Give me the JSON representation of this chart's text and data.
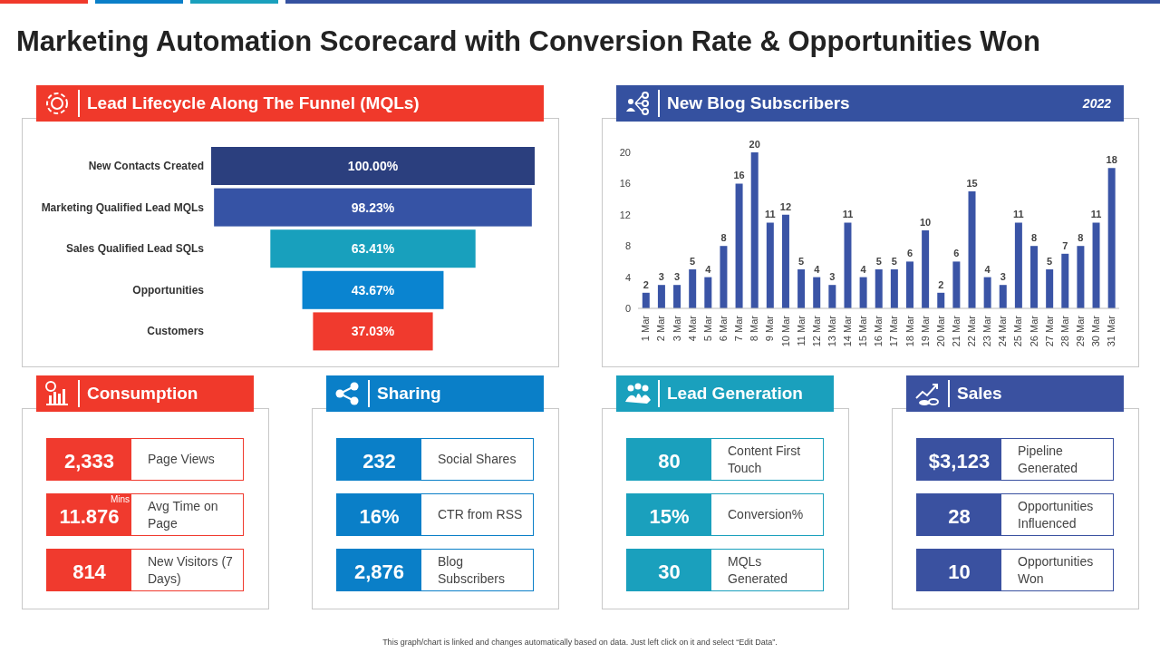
{
  "chart_data": [
    {
      "type": "other",
      "title": "Marketing Automation Scorecard with Conversion Rate & Opportunities Won",
      "annotations": [
        "This graph/chart is linked and changes automatically based on data. Just left click on it and select “Edit Data”."
      ]
    },
    {
      "type": "other",
      "title": "Lead Lifecycle Along The Funnel (MQLs)",
      "categories": [
        "New Contacts Created",
        "Marketing Qualified Lead MQLs",
        "Sales Qualified Lead SQLs",
        "Opportunities",
        "Customers"
      ],
      "values": [
        100.0,
        98.23,
        63.41,
        43.67,
        37.03
      ],
      "value_labels": [
        "100.00%",
        "98.23%",
        "63.41%",
        "43.67%",
        "37.03%"
      ],
      "colors": [
        "#2b3f7e",
        "#3653a5",
        "#18a0bd",
        "#0a84d0",
        "#f03a2e"
      ]
    },
    {
      "type": "bar",
      "title": "New Blog Subscribers",
      "subtitle": "2022",
      "categories": [
        "1 Mar",
        "2 Mar",
        "3 Mar",
        "4 Mar",
        "5 Mar",
        "6 Mar",
        "7 Mar",
        "8 Mar",
        "9 Mar",
        "10 Mar",
        "11 Mar",
        "12 Mar",
        "13 Mar",
        "14 Mar",
        "15 Mar",
        "16 Mar",
        "17 Mar",
        "18 Mar",
        "19 Mar",
        "20 Mar",
        "21 Mar",
        "22 Mar",
        "23 Mar",
        "24 Mar",
        "25 Mar",
        "26 Mar",
        "27 Mar",
        "28 Mar",
        "29 Mar",
        "30 Mar",
        "31 Mar"
      ],
      "values": [
        2,
        3,
        3,
        5,
        4,
        8,
        16,
        20,
        11,
        12,
        5,
        4,
        3,
        11,
        4,
        5,
        5,
        6,
        10,
        2,
        6,
        15,
        4,
        3,
        11,
        8,
        5,
        7,
        8,
        11,
        18
      ],
      "color": "#3a54a6",
      "ylim": [
        0,
        20
      ],
      "yticks": [
        0,
        4,
        8,
        12,
        16,
        20
      ],
      "data_labels": true
    },
    {
      "type": "other",
      "title": "Consumption",
      "categories": [
        "Page Views",
        "Avg Time on Page",
        "New Visitors (7 Days)"
      ],
      "value_labels": [
        "2,333",
        "11.876",
        "814"
      ],
      "color": "#f03a2e",
      "annotations": [
        "Mins"
      ]
    },
    {
      "type": "other",
      "title": "Sharing",
      "categories": [
        "Social Shares",
        "CTR from RSS",
        "Blog Subscribers"
      ],
      "value_labels": [
        "232",
        "16%",
        "2,876"
      ],
      "color": "#0a7fc8"
    },
    {
      "type": "other",
      "title": "Lead Generation",
      "categories": [
        "Content First Touch",
        "Conversion%",
        "MQLs Generated"
      ],
      "value_labels": [
        "80",
        "15%",
        "30"
      ],
      "color": "#1aa0bd"
    },
    {
      "type": "other",
      "title": "Sales",
      "categories": [
        "Pipeline Generated",
        "Opportunities Influenced",
        "Opportunities Won"
      ],
      "value_labels": [
        "$3,123",
        "28",
        "10"
      ],
      "color": "#3a51a0"
    }
  ]
}
